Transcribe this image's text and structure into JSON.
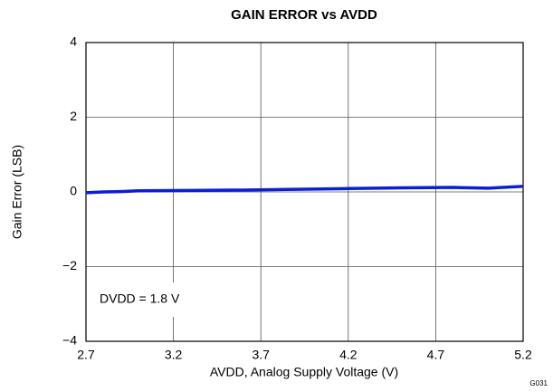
{
  "chart_data": {
    "type": "line",
    "title": "GAIN ERROR vs AVDD",
    "x_label": "AVDD, Analog Supply Voltage (V)",
    "y_label": "Gain Error (LSB)",
    "annotations": [
      "DVDD = 1.8 V",
      "G031"
    ],
    "x": [
      2.7,
      2.8,
      2.9,
      3.0,
      3.3,
      3.6,
      3.9,
      4.2,
      4.5,
      4.8,
      5.0,
      5.2
    ],
    "series": [
      {
        "name": "DVDD = 1.8 V",
        "color": "#0a1ed2",
        "values": [
          -0.02,
          0.0,
          0.01,
          0.03,
          0.04,
          0.05,
          0.07,
          0.09,
          0.11,
          0.12,
          0.1,
          0.15
        ]
      }
    ],
    "xlim": [
      2.7,
      5.2
    ],
    "xticks": [
      2.7,
      3.2,
      3.7,
      4.2,
      4.7,
      5.2
    ],
    "ylim": [
      -4,
      4
    ],
    "yticks": [
      {
        "value": -4,
        "label": "−4"
      },
      {
        "value": -2,
        "label": "−2"
      },
      0,
      2,
      4
    ],
    "grid": true
  }
}
